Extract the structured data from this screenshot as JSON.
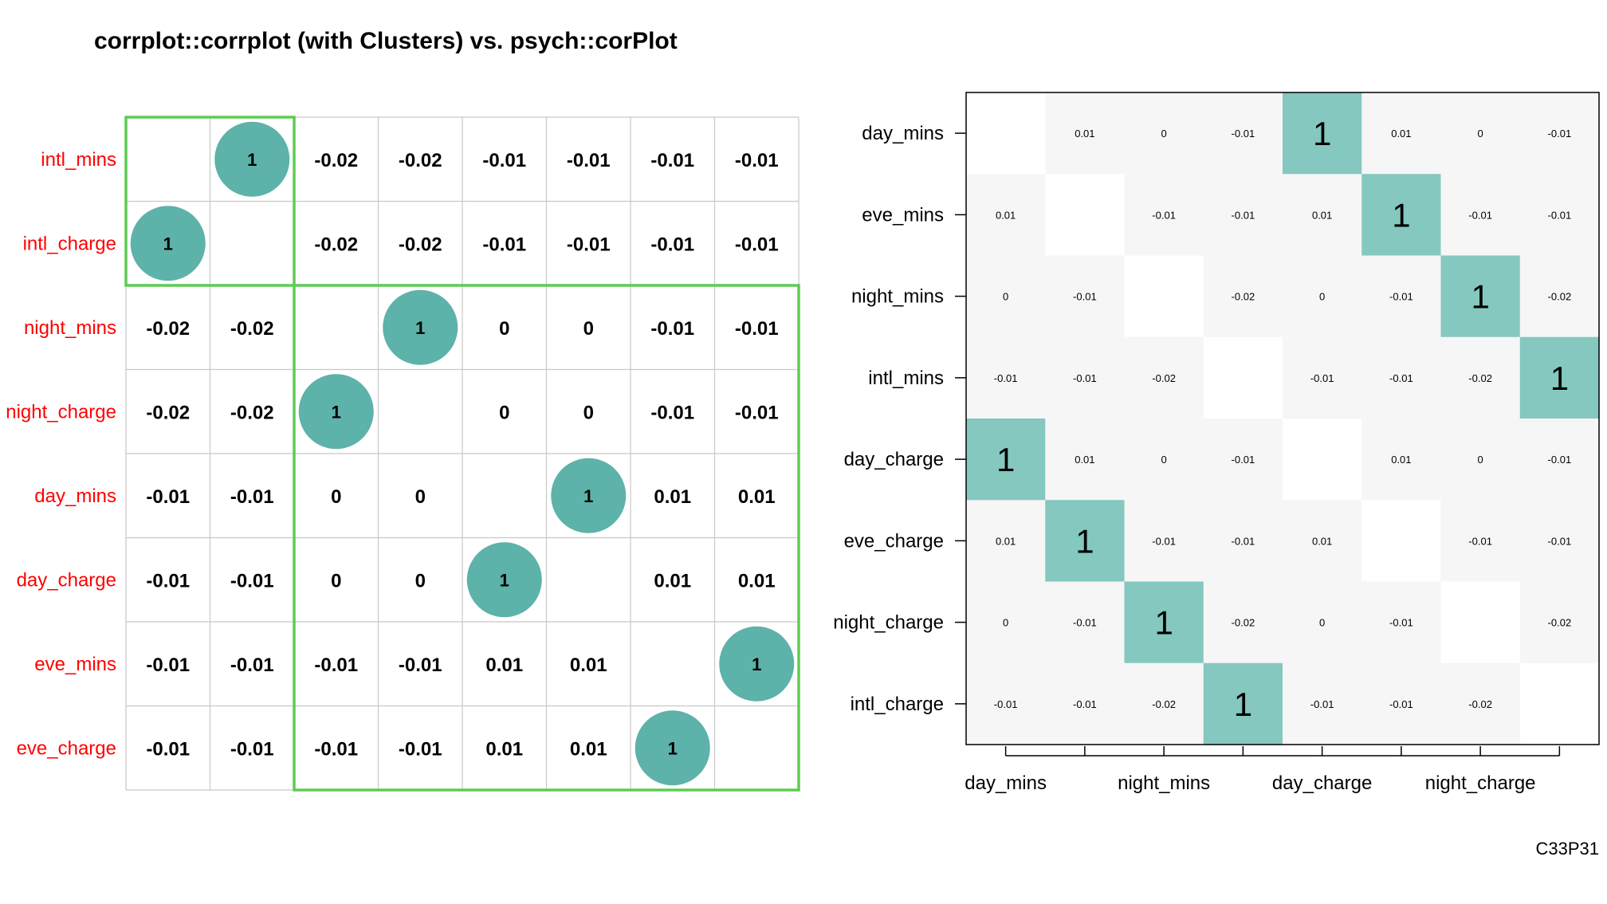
{
  "title": "corrplot::corrplot (with Clusters) vs. psych::corPlot",
  "figure_code": "C33P31",
  "colors": {
    "corrplot_circle": "#5db2a9",
    "psych_high": "#84c8bf",
    "psych_low": "#f6f6f6",
    "psych_blank": "#ffffff",
    "cluster_box": "#5dcc52",
    "grid": "#c8c8c8",
    "row_label": "#ff0000"
  },
  "chart_data": [
    {
      "type": "heatmap",
      "package": "corrplot::corrplot",
      "rows": [
        "intl_mins",
        "intl_charge",
        "night_mins",
        "night_charge",
        "day_mins",
        "day_charge",
        "eve_mins",
        "eve_charge"
      ],
      "cells": [
        [
          "",
          "1",
          "-0.02",
          "-0.02",
          "-0.01",
          "-0.01",
          "-0.01",
          "-0.01"
        ],
        [
          "1",
          "",
          "-0.02",
          "-0.02",
          "-0.01",
          "-0.01",
          "-0.01",
          "-0.01"
        ],
        [
          "-0.02",
          "-0.02",
          "",
          "1",
          "0",
          "0",
          "-0.01",
          "-0.01"
        ],
        [
          "-0.02",
          "-0.02",
          "1",
          "",
          "0",
          "0",
          "-0.01",
          "-0.01"
        ],
        [
          "-0.01",
          "-0.01",
          "0",
          "0",
          "",
          "1",
          "0.01",
          "0.01"
        ],
        [
          "-0.01",
          "-0.01",
          "0",
          "0",
          "1",
          "",
          "0.01",
          "0.01"
        ],
        [
          "-0.01",
          "-0.01",
          "-0.01",
          "-0.01",
          "0.01",
          "0.01",
          "",
          "1"
        ],
        [
          "-0.01",
          "-0.01",
          "-0.01",
          "-0.01",
          "0.01",
          "0.01",
          "1",
          ""
        ]
      ],
      "clusters": [
        {
          "start": 0,
          "end": 1
        },
        {
          "start": 2,
          "end": 7
        }
      ]
    },
    {
      "type": "heatmap",
      "package": "psych::corPlot",
      "rows": [
        "day_mins",
        "eve_mins",
        "night_mins",
        "intl_mins",
        "day_charge",
        "eve_charge",
        "night_charge",
        "intl_charge"
      ],
      "x_tick_labels": [
        "day_mins",
        "",
        "night_mins",
        "",
        "day_charge",
        "",
        "night_charge",
        ""
      ],
      "cells": [
        [
          "",
          "0.01",
          "0",
          "-0.01",
          "1",
          "0.01",
          "0",
          "-0.01"
        ],
        [
          "0.01",
          "",
          "-0.01",
          "-0.01",
          "0.01",
          "1",
          "-0.01",
          "-0.01"
        ],
        [
          "0",
          "-0.01",
          "",
          "-0.02",
          "0",
          "-0.01",
          "1",
          "-0.02"
        ],
        [
          "-0.01",
          "-0.01",
          "-0.02",
          "",
          "-0.01",
          "-0.01",
          "-0.02",
          "1"
        ],
        [
          "1",
          "0.01",
          "0",
          "-0.01",
          "",
          "0.01",
          "0",
          "-0.01"
        ],
        [
          "0.01",
          "1",
          "-0.01",
          "-0.01",
          "0.01",
          "",
          "-0.01",
          "-0.01"
        ],
        [
          "0",
          "-0.01",
          "1",
          "-0.02",
          "0",
          "-0.01",
          "",
          "-0.02"
        ],
        [
          "-0.01",
          "-0.01",
          "-0.02",
          "1",
          "-0.01",
          "-0.01",
          "-0.02",
          ""
        ]
      ]
    }
  ]
}
